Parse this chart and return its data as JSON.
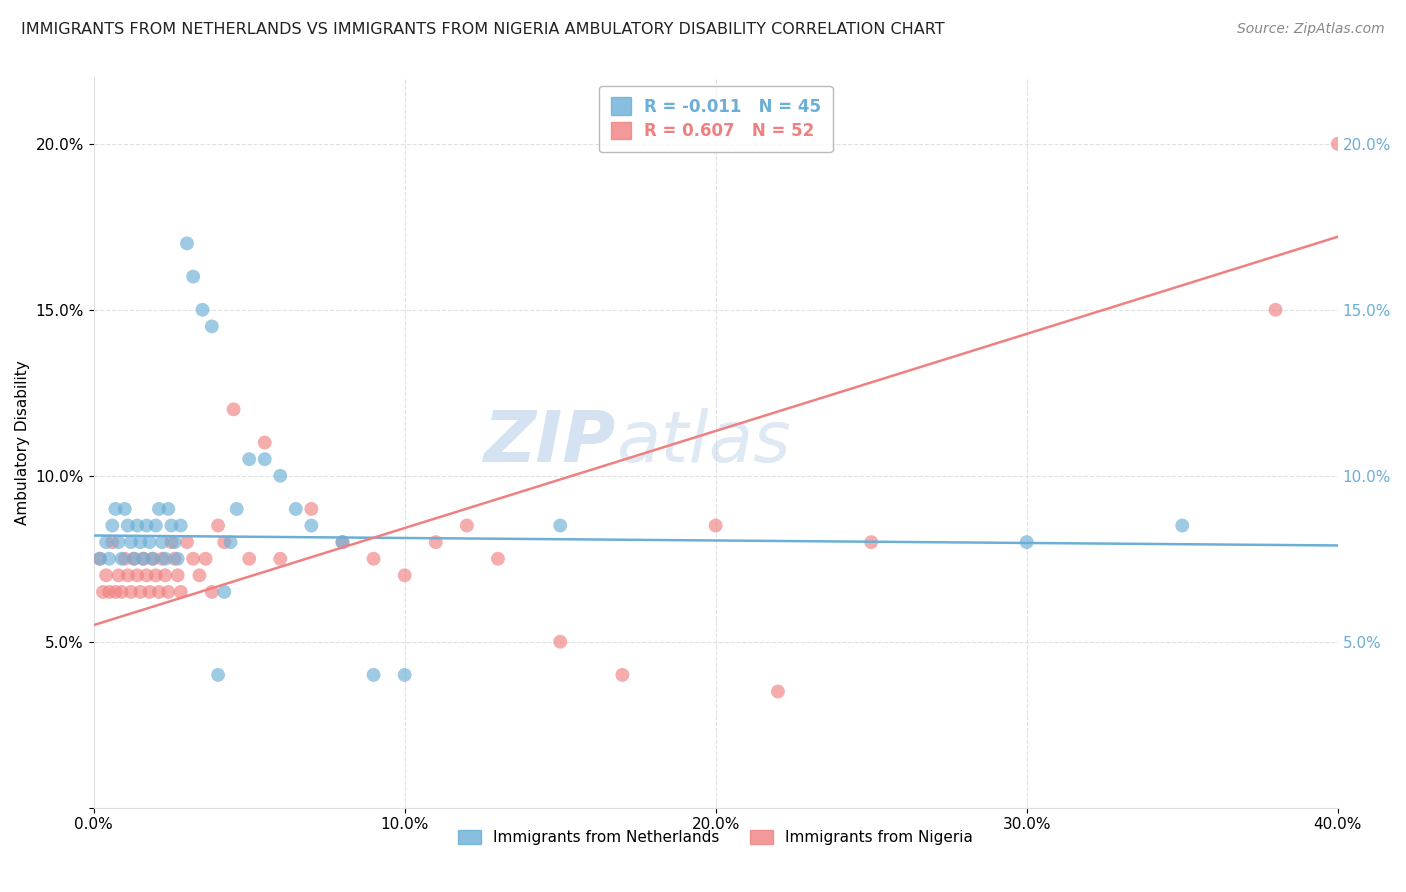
{
  "title": "IMMIGRANTS FROM NETHERLANDS VS IMMIGRANTS FROM NIGERIA AMBULATORY DISABILITY CORRELATION CHART",
  "source": "Source: ZipAtlas.com",
  "ylabel": "Ambulatory Disability",
  "watermark_left": "ZIP",
  "watermark_right": "atlas",
  "xlim": [
    0.0,
    0.4
  ],
  "ylim": [
    0.0,
    0.22
  ],
  "x_ticks": [
    0.0,
    0.1,
    0.2,
    0.3,
    0.4
  ],
  "x_tick_labels": [
    "0.0%",
    "10.0%",
    "20.0%",
    "30.0%",
    "40.0%"
  ],
  "y_ticks": [
    0.0,
    0.05,
    0.1,
    0.15,
    0.2
  ],
  "y_tick_labels_left": [
    "",
    "5.0%",
    "10.0%",
    "15.0%",
    "20.0%"
  ],
  "y_tick_labels_right": [
    "",
    "5.0%",
    "10.0%",
    "15.0%",
    "20.0%"
  ],
  "netherlands_color": "#6baed6",
  "nigeria_color": "#f08080",
  "netherlands_R": -0.011,
  "netherlands_N": 45,
  "nigeria_R": 0.607,
  "nigeria_N": 52,
  "netherlands_x": [
    0.002,
    0.004,
    0.005,
    0.006,
    0.007,
    0.008,
    0.009,
    0.01,
    0.011,
    0.012,
    0.013,
    0.014,
    0.015,
    0.016,
    0.017,
    0.018,
    0.019,
    0.02,
    0.021,
    0.022,
    0.023,
    0.024,
    0.025,
    0.026,
    0.027,
    0.028,
    0.03,
    0.032,
    0.035,
    0.038,
    0.04,
    0.042,
    0.044,
    0.046,
    0.05,
    0.055,
    0.06,
    0.065,
    0.07,
    0.08,
    0.09,
    0.1,
    0.15,
    0.3,
    0.35
  ],
  "netherlands_y": [
    0.075,
    0.08,
    0.075,
    0.085,
    0.09,
    0.08,
    0.075,
    0.09,
    0.085,
    0.08,
    0.075,
    0.085,
    0.08,
    0.075,
    0.085,
    0.08,
    0.075,
    0.085,
    0.09,
    0.08,
    0.075,
    0.09,
    0.085,
    0.08,
    0.075,
    0.085,
    0.17,
    0.16,
    0.15,
    0.145,
    0.04,
    0.065,
    0.08,
    0.09,
    0.105,
    0.105,
    0.1,
    0.09,
    0.085,
    0.08,
    0.04,
    0.04,
    0.085,
    0.08,
    0.085
  ],
  "nigeria_x": [
    0.002,
    0.003,
    0.004,
    0.005,
    0.006,
    0.007,
    0.008,
    0.009,
    0.01,
    0.011,
    0.012,
    0.013,
    0.014,
    0.015,
    0.016,
    0.017,
    0.018,
    0.019,
    0.02,
    0.021,
    0.022,
    0.023,
    0.024,
    0.025,
    0.026,
    0.027,
    0.028,
    0.03,
    0.032,
    0.034,
    0.036,
    0.038,
    0.04,
    0.042,
    0.045,
    0.05,
    0.055,
    0.06,
    0.07,
    0.08,
    0.09,
    0.1,
    0.11,
    0.12,
    0.13,
    0.15,
    0.17,
    0.2,
    0.22,
    0.25,
    0.38,
    0.4
  ],
  "nigeria_y": [
    0.075,
    0.065,
    0.07,
    0.065,
    0.08,
    0.065,
    0.07,
    0.065,
    0.075,
    0.07,
    0.065,
    0.075,
    0.07,
    0.065,
    0.075,
    0.07,
    0.065,
    0.075,
    0.07,
    0.065,
    0.075,
    0.07,
    0.065,
    0.08,
    0.075,
    0.07,
    0.065,
    0.08,
    0.075,
    0.07,
    0.075,
    0.065,
    0.085,
    0.08,
    0.12,
    0.075,
    0.11,
    0.075,
    0.09,
    0.08,
    0.075,
    0.07,
    0.08,
    0.085,
    0.075,
    0.05,
    0.04,
    0.085,
    0.035,
    0.08,
    0.15,
    0.2
  ],
  "netherlands_trend": [
    0.0,
    0.4
  ],
  "netherlands_trend_y": [
    0.082,
    0.079
  ],
  "nigeria_trend": [
    0.0,
    0.4
  ],
  "nigeria_trend_y": [
    0.055,
    0.172
  ],
  "legend_netherlands_label": "R = -0.011   N = 45",
  "legend_nigeria_label": "R = 0.607   N = 52",
  "legend_netherlands_series": "Immigrants from Netherlands",
  "legend_nigeria_series": "Immigrants from Nigeria",
  "title_fontsize": 11.5,
  "source_fontsize": 10,
  "axis_label_fontsize": 11,
  "tick_fontsize": 11,
  "right_tick_color": "#6baed6",
  "watermark_color_zip": "#b8cfe8",
  "watermark_color_atlas": "#b8cfe8",
  "watermark_fontsize": 52,
  "background_color": "#ffffff",
  "grid_color": "#e0e0e0",
  "grid_style": "--"
}
